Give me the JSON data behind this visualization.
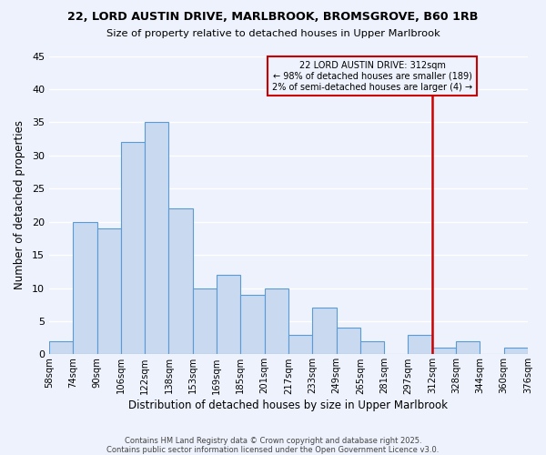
{
  "title1": "22, LORD AUSTIN DRIVE, MARLBROOK, BROMSGROVE, B60 1RB",
  "title2": "Size of property relative to detached houses in Upper Marlbrook",
  "xlabel": "Distribution of detached houses by size in Upper Marlbrook",
  "ylabel": "Number of detached properties",
  "bin_labels": [
    "58sqm",
    "74sqm",
    "90sqm",
    "106sqm",
    "122sqm",
    "138sqm",
    "153sqm",
    "169sqm",
    "185sqm",
    "201sqm",
    "217sqm",
    "233sqm",
    "249sqm",
    "265sqm",
    "281sqm",
    "297sqm",
    "312sqm",
    "328sqm",
    "344sqm",
    "360sqm",
    "376sqm"
  ],
  "bar_values": [
    2,
    20,
    19,
    32,
    35,
    22,
    10,
    12,
    9,
    10,
    3,
    7,
    4,
    2,
    0,
    3,
    1,
    2,
    0,
    1
  ],
  "bar_color": "#c8d9f0",
  "bar_edge_color": "#5b9bd5",
  "vline_x_index": 16,
  "vline_color": "#cc0000",
  "annotation_text": "22 LORD AUSTIN DRIVE: 312sqm\n← 98% of detached houses are smaller (189)\n2% of semi-detached houses are larger (4) →",
  "annotation_box_edge_color": "#cc0000",
  "ylim": [
    0,
    45
  ],
  "yticks": [
    0,
    5,
    10,
    15,
    20,
    25,
    30,
    35,
    40,
    45
  ],
  "footnote1": "Contains HM Land Registry data © Crown copyright and database right 2025.",
  "footnote2": "Contains public sector information licensed under the Open Government Licence v3.0.",
  "bg_color": "#eef2fc",
  "grid_color": "#ffffff"
}
